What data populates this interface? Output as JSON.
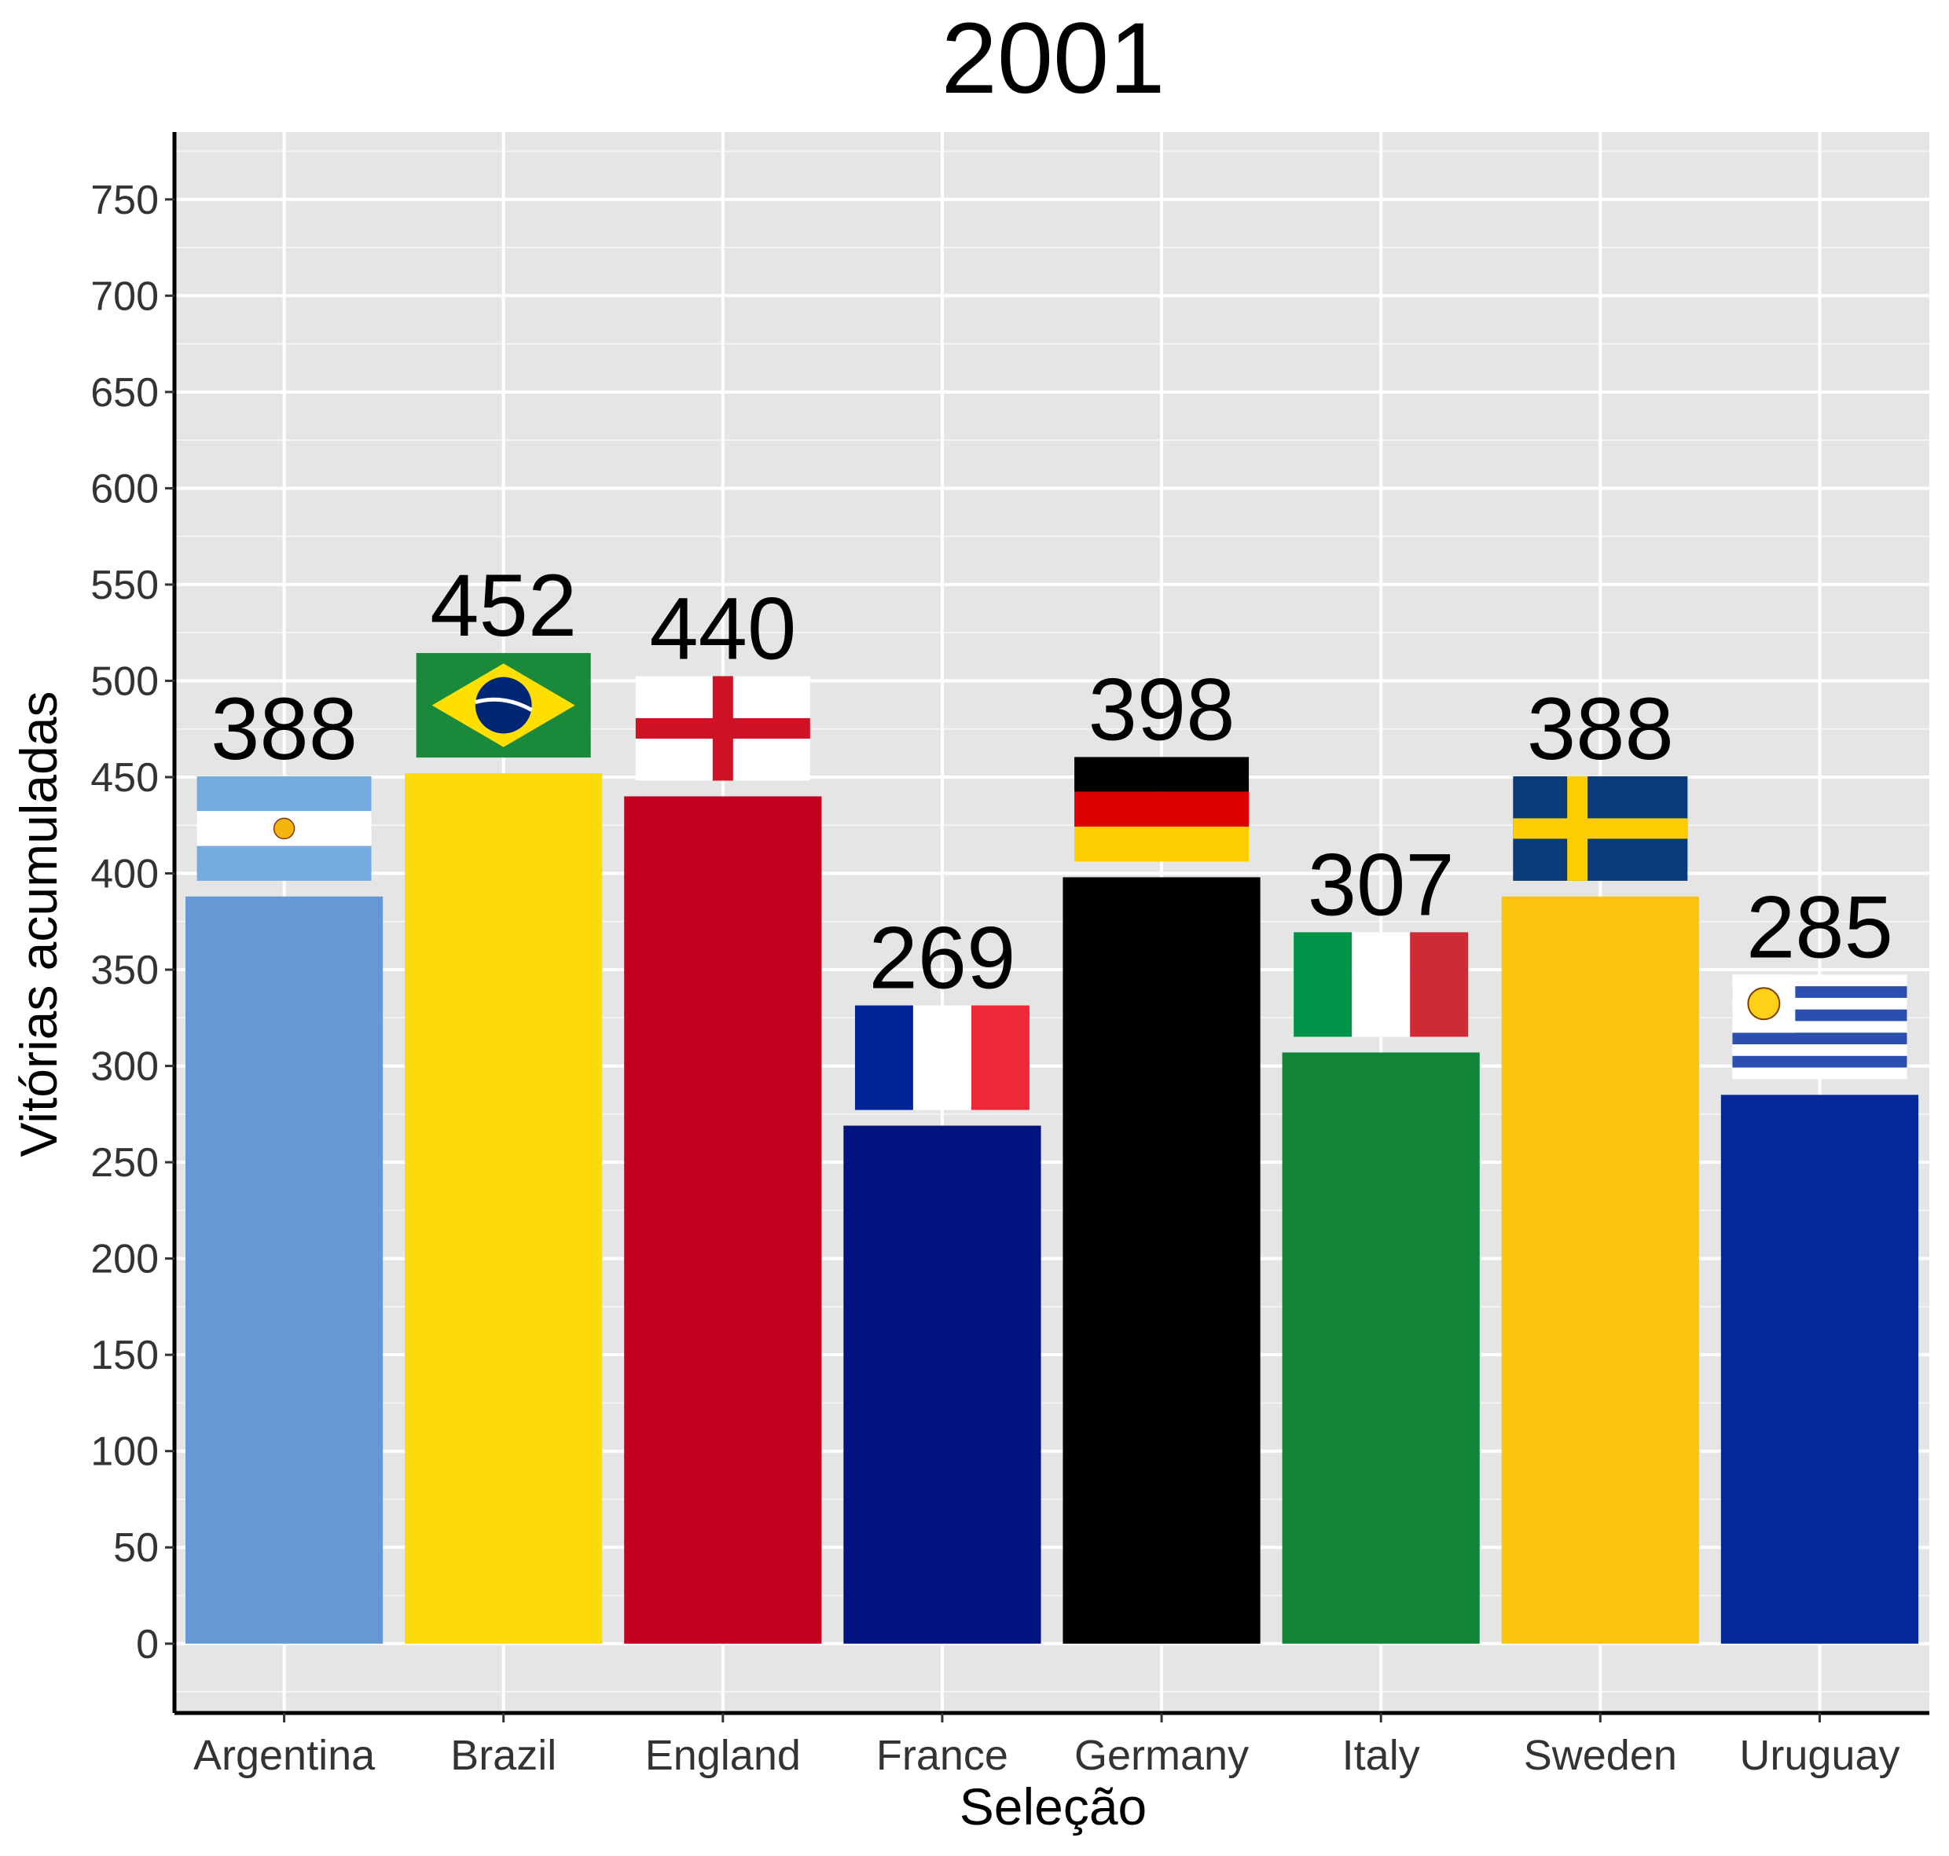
{
  "chart_data": {
    "type": "bar",
    "title": "2001",
    "xlabel": "Seleção",
    "ylabel": "Vitórias acumuladas",
    "ylim": [
      -36,
      785
    ],
    "yticks": [
      0,
      50,
      100,
      150,
      200,
      250,
      300,
      350,
      400,
      450,
      500,
      550,
      600,
      650,
      700,
      750
    ],
    "ytick_labels": [
      "0",
      "50",
      "100",
      "150",
      "200",
      "250",
      "300",
      "350",
      "400",
      "450",
      "500",
      "550",
      "600",
      "650",
      "700",
      "750"
    ],
    "grid": true,
    "categories": [
      "Argentina",
      "Brazil",
      "England",
      "France",
      "Germany",
      "Italy",
      "Sweden",
      "Uruguay"
    ],
    "values": [
      388,
      452,
      440,
      269,
      398,
      307,
      388,
      285
    ],
    "value_labels": [
      "388",
      "452",
      "440",
      "269",
      "398",
      "307",
      "388",
      "285"
    ],
    "bar_colors": [
      "#6699D3",
      "#FDDB0B",
      "#C40020",
      "#00137E",
      "#000000",
      "#118438",
      "#FCC30C",
      "#032899"
    ],
    "flags": [
      "argentina-flag",
      "brazil-flag",
      "england-flag",
      "france-flag",
      "germany-flag",
      "italy-flag",
      "sweden-flag",
      "uruguay-flag"
    ]
  }
}
